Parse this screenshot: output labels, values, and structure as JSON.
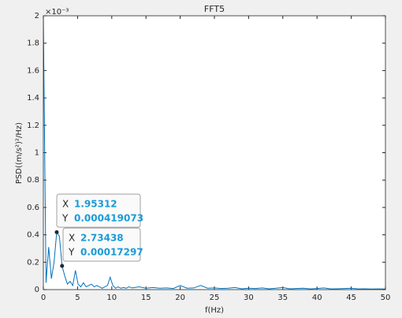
{
  "chart_data": {
    "type": "line",
    "title": "FFT5",
    "x_label": "f(Hz)",
    "y_label": "PSD((m/s²)²/Hz)",
    "y_exponent_label": "×10⁻³",
    "x": [
      0,
      0.390625,
      0.78125,
      1.171875,
      1.5625,
      1.953125,
      2.34375,
      2.734375,
      3.125,
      3.515625,
      3.90625,
      4.296875,
      4.6875,
      5.078125,
      5.46875,
      5.859375,
      6.25,
      6.640625,
      7.03125,
      7.421875,
      7.8125,
      8.203125,
      8.59375,
      8.984375,
      9.375,
      9.765625,
      10.15625,
      10.546875,
      10.9375,
      11.328125,
      11.71875,
      12.109375,
      12.5,
      13,
      14,
      15,
      16,
      17,
      18,
      19,
      20,
      21,
      22,
      23,
      24,
      25,
      26,
      27,
      28,
      29,
      30,
      31,
      32,
      33,
      34,
      35,
      36,
      37,
      38,
      39,
      40,
      41,
      42,
      43,
      44,
      45,
      46,
      47,
      48,
      49,
      50
    ],
    "series": [
      {
        "color": "#0072bd",
        "values": [
          1.98,
          0.05,
          0.31,
          0.08,
          0.2,
          0.419073,
          0.39,
          0.17297,
          0.1,
          0.04,
          0.06,
          0.03,
          0.14,
          0.04,
          0.02,
          0.05,
          0.02,
          0.03,
          0.04,
          0.02,
          0.03,
          0.02,
          0.01,
          0.02,
          0.03,
          0.09,
          0.03,
          0.01,
          0.02,
          0.01,
          0.015,
          0.01,
          0.02,
          0.012,
          0.02,
          0.01,
          0.015,
          0.01,
          0.012,
          0.008,
          0.03,
          0.01,
          0.012,
          0.03,
          0.01,
          0.012,
          0.008,
          0.01,
          0.015,
          0.006,
          0.01,
          0.008,
          0.012,
          0.006,
          0.01,
          0.015,
          0.006,
          0.008,
          0.01,
          0.005,
          0.008,
          0.012,
          0.005,
          0.006,
          0.008,
          0.01,
          0.005,
          0.006,
          0.004,
          0.005,
          0.004
        ]
      }
    ],
    "xlim": [
      0,
      50
    ],
    "ylim": [
      0,
      2
    ],
    "xticks": [
      0,
      5,
      10,
      15,
      20,
      25,
      30,
      35,
      40,
      45,
      50
    ],
    "yticks": [
      0,
      0.2,
      0.4,
      0.6,
      0.8,
      1,
      1.2,
      1.4,
      1.6,
      1.8,
      2
    ],
    "datatips": [
      {
        "x_name": "X",
        "y_name": "Y",
        "x": 1.95312,
        "y": 0.419073,
        "x_label": "1.95312",
        "y_label": "0.000419073"
      },
      {
        "x_name": "X",
        "y_name": "Y",
        "x": 2.73438,
        "y": 0.17297,
        "x_label": "2.73438",
        "y_label": "0.00017297"
      }
    ]
  }
}
